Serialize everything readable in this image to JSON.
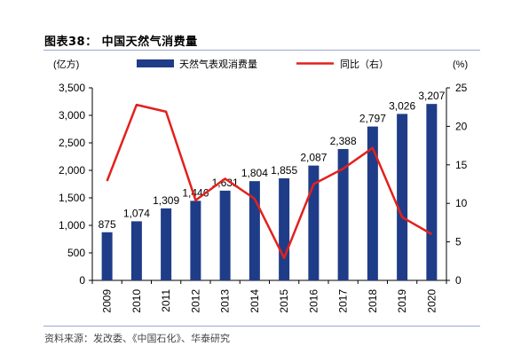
{
  "figure": {
    "title": "图表38：  中国天然气消费量",
    "source": "资料来源：发改委、《中国石化》、华泰研究"
  },
  "chart_data": {
    "type": "bar",
    "categories": [
      "2009",
      "2010",
      "2011",
      "2012",
      "2013",
      "2014",
      "2015",
      "2016",
      "2017",
      "2018",
      "2019",
      "2020"
    ],
    "series": [
      {
        "name": "天然气表观消费量",
        "type": "bar",
        "axis": "left",
        "color": "#1f3c88",
        "values": [
          875,
          1074,
          1309,
          1446,
          1631,
          1804,
          1855,
          2087,
          2388,
          2797,
          3026,
          3207
        ]
      },
      {
        "name": "同比（右）",
        "type": "line",
        "axis": "right",
        "color": "#e3211c",
        "values": [
          12.9,
          22.8,
          21.9,
          10.4,
          13.2,
          10.6,
          2.9,
          12.5,
          14.5,
          17.2,
          8.2,
          6.0
        ]
      }
    ],
    "y_left": {
      "unit_label": "(亿方)",
      "ylim": [
        0,
        3500
      ],
      "ticks": [
        "0",
        "500",
        "1,000",
        "1,500",
        "2,000",
        "2,500",
        "3,000",
        "3,500"
      ]
    },
    "y_right": {
      "unit_label": "(%)",
      "ylim": [
        0,
        25
      ],
      "ticks": [
        "0",
        "5",
        "10",
        "15",
        "20",
        "25"
      ]
    },
    "data_labels": [
      "875",
      "1,074",
      "1,309",
      "1,446",
      "1,631",
      "1,804",
      "1,855",
      "2,087",
      "2,388",
      "2,797",
      "3,026",
      "3,207"
    ],
    "grid": false,
    "legend_position": "top-center"
  }
}
